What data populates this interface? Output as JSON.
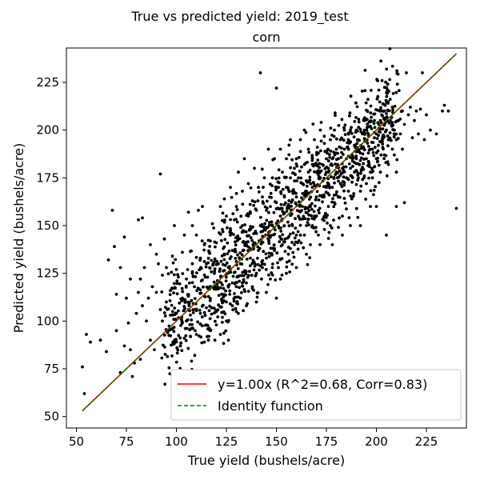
{
  "chart_data": {
    "type": "scatter",
    "suptitle": "True vs predicted yield: 2019_test",
    "title": "corn",
    "xlabel": "True yield (bushels/acre)",
    "ylabel": "Predicted yield (bushels/acre)",
    "xlim": [
      45,
      245
    ],
    "ylim": [
      44,
      243
    ],
    "xticks": [
      50,
      75,
      100,
      125,
      150,
      175,
      200,
      225
    ],
    "yticks": [
      50,
      75,
      100,
      125,
      150,
      175,
      200,
      225
    ],
    "grid": false,
    "legend_placement": "lower-right",
    "series": [
      {
        "name": "y=1.00x (R^2=0.68, Corr=0.83)",
        "kind": "line",
        "color": "#ff0000",
        "x": [
          53,
          240
        ],
        "y": [
          53,
          240
        ]
      },
      {
        "name": "Identity function",
        "kind": "dashed-line",
        "color": "#008000",
        "x": [
          53,
          240
        ],
        "y": [
          53,
          240
        ]
      },
      {
        "kind": "points",
        "color": "#000000",
        "point_count": 1500,
        "points": [
          [
            53,
            76
          ],
          [
            54,
            62
          ],
          [
            55,
            93
          ],
          [
            57,
            89
          ],
          [
            62,
            90
          ],
          [
            65,
            84
          ],
          [
            66,
            132
          ],
          [
            68,
            158
          ],
          [
            69,
            139
          ],
          [
            70,
            95
          ],
          [
            70,
            114
          ],
          [
            72,
            73
          ],
          [
            72,
            128
          ],
          [
            74,
            87
          ],
          [
            74,
            144
          ],
          [
            75,
            112
          ],
          [
            76,
            99
          ],
          [
            77,
            85
          ],
          [
            77,
            122
          ],
          [
            78,
            71
          ],
          [
            79,
            78
          ],
          [
            80,
            104
          ],
          [
            81,
            115
          ],
          [
            81,
            153
          ],
          [
            82,
            80
          ],
          [
            82,
            122
          ],
          [
            83,
            108
          ],
          [
            83,
            154
          ],
          [
            84,
            128
          ],
          [
            85,
            100
          ],
          [
            86,
            112
          ],
          [
            87,
            90
          ],
          [
            87,
            140
          ],
          [
            88,
            118
          ],
          [
            89,
            85
          ],
          [
            90,
            115
          ],
          [
            90,
            135
          ],
          [
            91,
            130
          ],
          [
            92,
            106
          ],
          [
            92,
            177
          ],
          [
            93,
            100
          ],
          [
            93,
            124
          ],
          [
            94,
            143
          ],
          [
            95,
            110
          ],
          [
            95,
            128
          ],
          [
            96,
            95
          ],
          [
            97,
            116
          ],
          [
            98,
            134
          ],
          [
            99,
            150
          ],
          [
            100,
            104
          ],
          [
            100,
            127
          ],
          [
            101,
            123
          ],
          [
            102,
            87
          ],
          [
            103,
            112
          ],
          [
            103,
            136
          ],
          [
            104,
            145
          ],
          [
            105,
            100
          ],
          [
            105,
            122
          ],
          [
            106,
            113
          ],
          [
            106,
            157
          ],
          [
            107,
            92
          ],
          [
            108,
            130
          ],
          [
            108,
            150
          ],
          [
            109,
            118
          ],
          [
            110,
            106
          ],
          [
            110,
            145
          ],
          [
            111,
            158
          ],
          [
            112,
            104
          ],
          [
            112,
            133
          ],
          [
            113,
            160
          ],
          [
            114,
            89
          ],
          [
            114,
            140
          ],
          [
            115,
            107
          ],
          [
            115,
            130
          ],
          [
            116,
            117
          ],
          [
            117,
            95
          ],
          [
            117,
            142
          ],
          [
            118,
            151
          ],
          [
            119,
            125
          ],
          [
            120,
            105
          ],
          [
            120,
            141
          ],
          [
            121,
            130
          ],
          [
            122,
            93
          ],
          [
            122,
            160
          ],
          [
            123,
            119
          ],
          [
            123,
            148
          ],
          [
            124,
            135
          ],
          [
            124,
            164
          ],
          [
            125,
            110
          ],
          [
            125,
            155
          ],
          [
            126,
            128
          ],
          [
            126,
            90
          ],
          [
            127,
            145
          ],
          [
            127,
            170
          ],
          [
            128,
            120
          ],
          [
            128,
            137
          ],
          [
            129,
            153
          ],
          [
            130,
            118
          ],
          [
            130,
            160
          ],
          [
            131,
            143
          ],
          [
            131,
            178
          ],
          [
            132,
            112
          ],
          [
            132,
            130
          ],
          [
            133,
            150
          ],
          [
            133,
            168
          ],
          [
            134,
            126
          ],
          [
            134,
            185
          ],
          [
            135,
            140
          ],
          [
            135,
            120
          ],
          [
            136,
            155
          ],
          [
            136,
            172
          ],
          [
            137,
            133
          ],
          [
            137,
            148
          ],
          [
            138,
            163
          ],
          [
            138,
            117
          ],
          [
            139,
            141
          ],
          [
            139,
            180
          ],
          [
            140,
            125
          ],
          [
            140,
            158
          ],
          [
            141,
            170
          ],
          [
            141,
            137
          ],
          [
            142,
            150
          ],
          [
            142,
            230
          ],
          [
            143,
            128
          ],
          [
            143,
            165
          ],
          [
            144,
            148
          ],
          [
            144,
            175
          ],
          [
            145,
            133
          ],
          [
            145,
            158
          ],
          [
            146,
            145
          ],
          [
            146,
            190
          ],
          [
            147,
            160
          ],
          [
            147,
            122
          ],
          [
            148,
            175
          ],
          [
            148,
            150
          ],
          [
            149,
            138
          ],
          [
            149,
            185
          ],
          [
            150,
            162
          ],
          [
            150,
            222
          ],
          [
            151,
            128
          ],
          [
            151,
            170
          ],
          [
            152,
            155
          ],
          [
            152,
            190
          ],
          [
            153,
            140
          ],
          [
            153,
            178
          ],
          [
            154,
            165
          ],
          [
            154,
            150
          ],
          [
            155,
            185
          ],
          [
            155,
            170
          ],
          [
            156,
            135
          ],
          [
            156,
            160
          ],
          [
            157,
            175
          ],
          [
            157,
            195
          ],
          [
            158,
            150
          ],
          [
            158,
            168
          ],
          [
            159,
            180
          ],
          [
            159,
            140
          ],
          [
            160,
            165
          ],
          [
            160,
            185
          ],
          [
            161,
            155
          ],
          [
            161,
            175
          ],
          [
            162,
            195
          ],
          [
            162,
            145
          ],
          [
            163,
            172
          ],
          [
            163,
            160
          ],
          [
            164,
            182
          ],
          [
            164,
            200
          ],
          [
            165,
            168
          ],
          [
            165,
            150
          ],
          [
            166,
            178
          ],
          [
            166,
            190
          ],
          [
            167,
            160
          ],
          [
            167,
            140
          ],
          [
            168,
            185
          ],
          [
            168,
            170
          ],
          [
            169,
            195
          ],
          [
            169,
            155
          ],
          [
            170,
            178
          ],
          [
            170,
            165
          ],
          [
            171,
            188
          ],
          [
            171,
            145
          ],
          [
            172,
            175
          ],
          [
            172,
            200
          ],
          [
            173,
            165
          ],
          [
            173,
            182
          ],
          [
            174,
            155
          ],
          [
            174,
            193
          ],
          [
            175,
            170
          ],
          [
            175,
            185
          ],
          [
            176,
            160
          ],
          [
            176,
            178
          ],
          [
            177,
            195
          ],
          [
            177,
            150
          ],
          [
            178,
            185
          ],
          [
            178,
            170
          ],
          [
            179,
            200
          ],
          [
            179,
            162
          ],
          [
            180,
            178
          ],
          [
            180,
            190
          ],
          [
            181,
            165
          ],
          [
            181,
            185
          ],
          [
            182,
            195
          ],
          [
            182,
            172
          ],
          [
            183,
            180
          ],
          [
            183,
            155
          ],
          [
            184,
            190
          ],
          [
            184,
            200
          ],
          [
            185,
            175
          ],
          [
            185,
            185
          ],
          [
            186,
            168
          ],
          [
            186,
            195
          ],
          [
            187,
            180
          ],
          [
            187,
            200
          ],
          [
            188,
            185
          ],
          [
            188,
            165
          ],
          [
            189,
            192
          ],
          [
            189,
            178
          ],
          [
            190,
            185
          ],
          [
            190,
            200
          ],
          [
            191,
            175
          ],
          [
            191,
            195
          ],
          [
            192,
            188
          ],
          [
            192,
            168
          ],
          [
            193,
            198
          ],
          [
            193,
            180
          ],
          [
            194,
            190
          ],
          [
            194,
            205
          ],
          [
            195,
            185
          ],
          [
            195,
            172
          ],
          [
            196,
            198
          ],
          [
            196,
            188
          ],
          [
            197,
            178
          ],
          [
            197,
            202
          ],
          [
            198,
            190
          ],
          [
            198,
            175
          ],
          [
            199,
            196
          ],
          [
            199,
            205
          ],
          [
            200,
            185
          ],
          [
            200,
            198
          ],
          [
            201,
            192
          ],
          [
            202,
            178
          ],
          [
            202,
            205
          ],
          [
            203,
            195
          ],
          [
            204,
            187
          ],
          [
            204,
            210
          ],
          [
            205,
            200
          ],
          [
            206,
            182
          ],
          [
            206,
            195
          ],
          [
            207,
            205
          ],
          [
            208,
            190
          ],
          [
            208,
            212
          ],
          [
            209,
            200
          ],
          [
            210,
            195
          ],
          [
            210,
            178
          ],
          [
            211,
            205
          ],
          [
            212,
            198
          ],
          [
            213,
            210
          ],
          [
            213,
            190
          ],
          [
            214,
            203
          ],
          [
            215,
            230
          ],
          [
            216,
            208
          ],
          [
            217,
            212
          ],
          [
            218,
            196
          ],
          [
            219,
            205
          ],
          [
            220,
            210
          ],
          [
            221,
            198
          ],
          [
            222,
            211
          ],
          [
            223,
            230
          ],
          [
            224,
            195
          ],
          [
            225,
            208
          ],
          [
            227,
            200
          ],
          [
            230,
            198
          ],
          [
            233,
            210
          ],
          [
            234,
            213
          ],
          [
            236,
            210
          ],
          [
            240,
            159
          ],
          [
            108,
            125
          ],
          [
            115,
            98
          ],
          [
            123,
            102
          ],
          [
            128,
            108
          ],
          [
            133,
            120
          ],
          [
            138,
            118
          ],
          [
            143,
            130
          ],
          [
            148,
            128
          ],
          [
            152,
            122
          ],
          [
            157,
            138
          ],
          [
            160,
            145
          ],
          [
            164,
            145
          ],
          [
            168,
            150
          ],
          [
            171,
            158
          ],
          [
            174,
            148
          ],
          [
            178,
            140
          ],
          [
            183,
            145
          ],
          [
            187,
            150
          ],
          [
            192,
            150
          ],
          [
            197,
            160
          ],
          [
            200,
            160
          ],
          [
            205,
            145
          ],
          [
            210,
            160
          ],
          [
            214,
            162
          ],
          [
            140,
            110
          ],
          [
            145,
            115
          ],
          [
            150,
            112
          ],
          [
            155,
            125
          ],
          [
            160,
            128
          ],
          [
            165,
            135
          ],
          [
            125,
            100
          ],
          [
            130,
            105
          ],
          [
            135,
            108
          ],
          [
            120,
            98
          ],
          [
            116,
            90
          ],
          [
            110,
            93
          ]
        ]
      }
    ]
  }
}
